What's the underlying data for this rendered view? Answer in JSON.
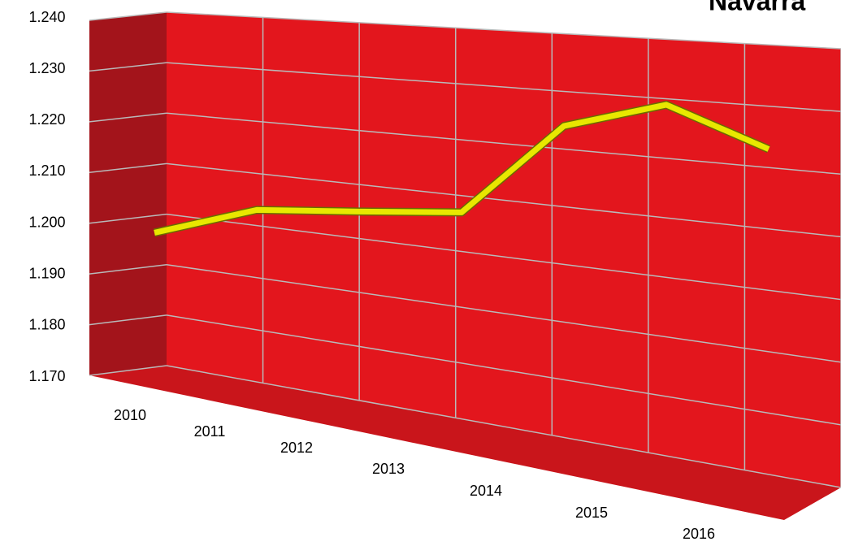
{
  "chart_data": {
    "type": "line",
    "title": "Navarra",
    "categories": [
      "2010",
      "2011",
      "2012",
      "2013",
      "2014",
      "2015",
      "2016"
    ],
    "values": [
      1196,
      1203,
      1205,
      1207,
      1224,
      1229,
      1223
    ],
    "color": "#e8e800",
    "ylim": [
      1170,
      1240
    ],
    "yticks": [
      {
        "value": 1170,
        "label": "1.170"
      },
      {
        "value": 1180,
        "label": "1.180"
      },
      {
        "value": 1190,
        "label": "1.190"
      },
      {
        "value": 1200,
        "label": "1.200"
      },
      {
        "value": 1210,
        "label": "1.210"
      },
      {
        "value": 1220,
        "label": "1.220"
      },
      {
        "value": 1230,
        "label": "1.230"
      },
      {
        "value": 1240,
        "label": "1.240"
      }
    ],
    "grid": true
  }
}
